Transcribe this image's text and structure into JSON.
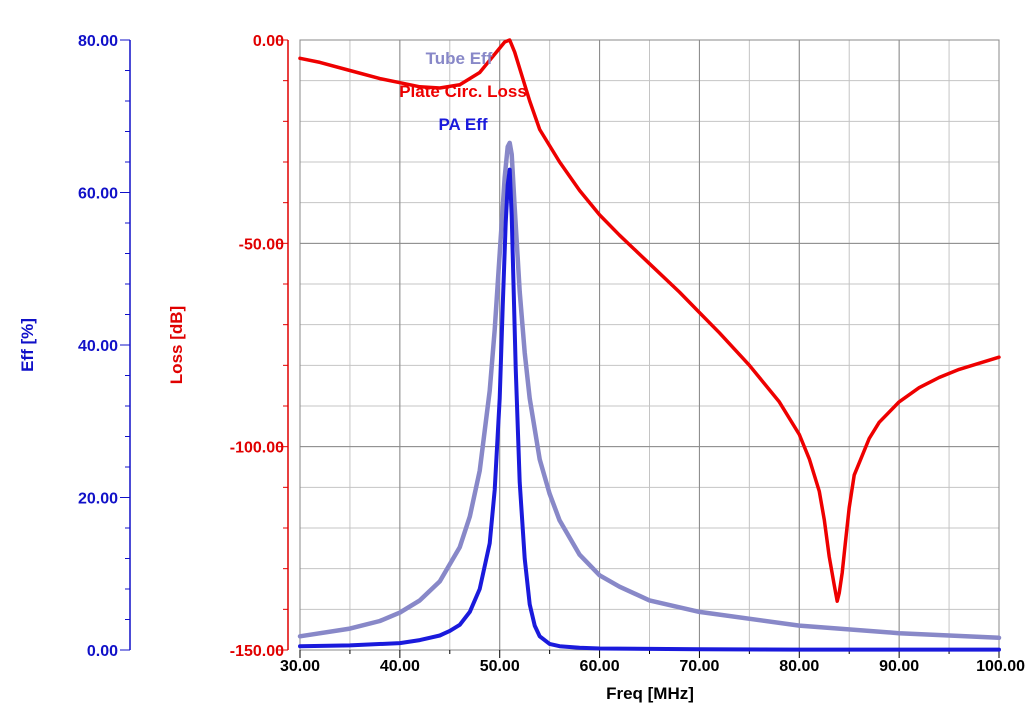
{
  "chart_data": {
    "type": "line",
    "x": {
      "label": "Freq [MHz]",
      "range": [
        30,
        100
      ],
      "ticks": [
        "30.00",
        "40.00",
        "50.00",
        "60.00",
        "70.00",
        "80.00",
        "90.00",
        "100.00"
      ],
      "tick_values": [
        30,
        40,
        50,
        60,
        70,
        80,
        90,
        100
      ]
    },
    "y_left": {
      "label": "Eff [%]",
      "color": "#1010c8",
      "range": [
        0,
        80
      ],
      "ticks": [
        "0.00",
        "20.00",
        "40.00",
        "60.00",
        "80.00"
      ],
      "tick_values": [
        0,
        20,
        40,
        60,
        80
      ]
    },
    "y_right": {
      "label": "Loss [dB]",
      "color": "#e00000",
      "range": [
        -150,
        0
      ],
      "ticks": [
        "-150.00",
        "-100.00",
        "-50.00",
        "0.00"
      ],
      "tick_values": [
        -150,
        -100,
        -50,
        0
      ]
    },
    "grid": true,
    "series": [
      {
        "name": "Tube Eff",
        "axis": "left",
        "color": "#8888c8",
        "x": [
          30,
          35,
          38,
          40,
          42,
          44,
          46,
          47,
          48,
          49,
          49.5,
          50,
          50.5,
          50.8,
          51,
          51.2,
          51.5,
          52,
          52.5,
          53,
          54,
          55,
          56,
          58,
          60,
          62,
          65,
          70,
          80,
          90,
          100
        ],
        "y": [
          1.8,
          2.8,
          3.8,
          4.9,
          6.5,
          9.0,
          13.5,
          17.5,
          23.5,
          34,
          42,
          52,
          62,
          66,
          66.5,
          65,
          58,
          47,
          39,
          33,
          25,
          20.5,
          17,
          12.5,
          9.8,
          8.3,
          6.5,
          5,
          3.2,
          2.2,
          1.6
        ]
      },
      {
        "name": "PA Eff",
        "axis": "left",
        "color": "#1a1adc",
        "x": [
          30,
          35,
          40,
          42,
          44,
          45,
          46,
          47,
          48,
          49,
          49.5,
          50,
          50.3,
          50.6,
          50.8,
          51,
          51.2,
          51.4,
          51.6,
          52,
          52.5,
          53,
          53.5,
          54,
          55,
          56,
          58,
          60,
          70,
          80,
          90,
          100
        ],
        "y": [
          0.5,
          0.6,
          0.9,
          1.3,
          1.9,
          2.5,
          3.3,
          5,
          8,
          14,
          21,
          33,
          45,
          56,
          61,
          63,
          57,
          47,
          37,
          22,
          12,
          6,
          3.2,
          1.8,
          0.8,
          0.5,
          0.3,
          0.2,
          0.1,
          0.05,
          0.05,
          0.05
        ]
      },
      {
        "name": "Plate Circ. Loss",
        "axis": "right",
        "color": "#ee0000",
        "x": [
          30,
          32,
          35,
          38,
          40,
          42,
          44,
          46,
          48,
          49,
          50,
          50.5,
          51,
          51.5,
          52,
          53,
          54,
          56,
          58,
          60,
          62,
          65,
          68,
          70,
          72,
          75,
          78,
          80,
          81,
          82,
          82.5,
          83,
          83.5,
          83.8,
          84,
          84.3,
          84.6,
          85,
          85.5,
          86,
          87,
          88,
          90,
          92,
          94,
          96,
          98,
          100
        ],
        "y": [
          -4.5,
          -5.5,
          -7.5,
          -9.5,
          -10.5,
          -11.5,
          -11.8,
          -11,
          -8,
          -5,
          -2,
          -0.5,
          0,
          -3,
          -7,
          -15,
          -22,
          -30,
          -37,
          -43,
          -48,
          -55,
          -62,
          -67,
          -72,
          -80,
          -89,
          -97,
          -103,
          -111,
          -118,
          -127,
          -134,
          -138,
          -136,
          -131,
          -124,
          -115,
          -107,
          -104,
          -98,
          -94,
          -89,
          -85.5,
          -83,
          -81,
          -79.5,
          -78
        ]
      }
    ],
    "legend": [
      {
        "label": "Tube Eff",
        "color": "#8888c8"
      },
      {
        "label": "Plate Circ. Loss",
        "color": "#ee0000"
      },
      {
        "label": "PA Eff",
        "color": "#1a1adc"
      }
    ]
  }
}
